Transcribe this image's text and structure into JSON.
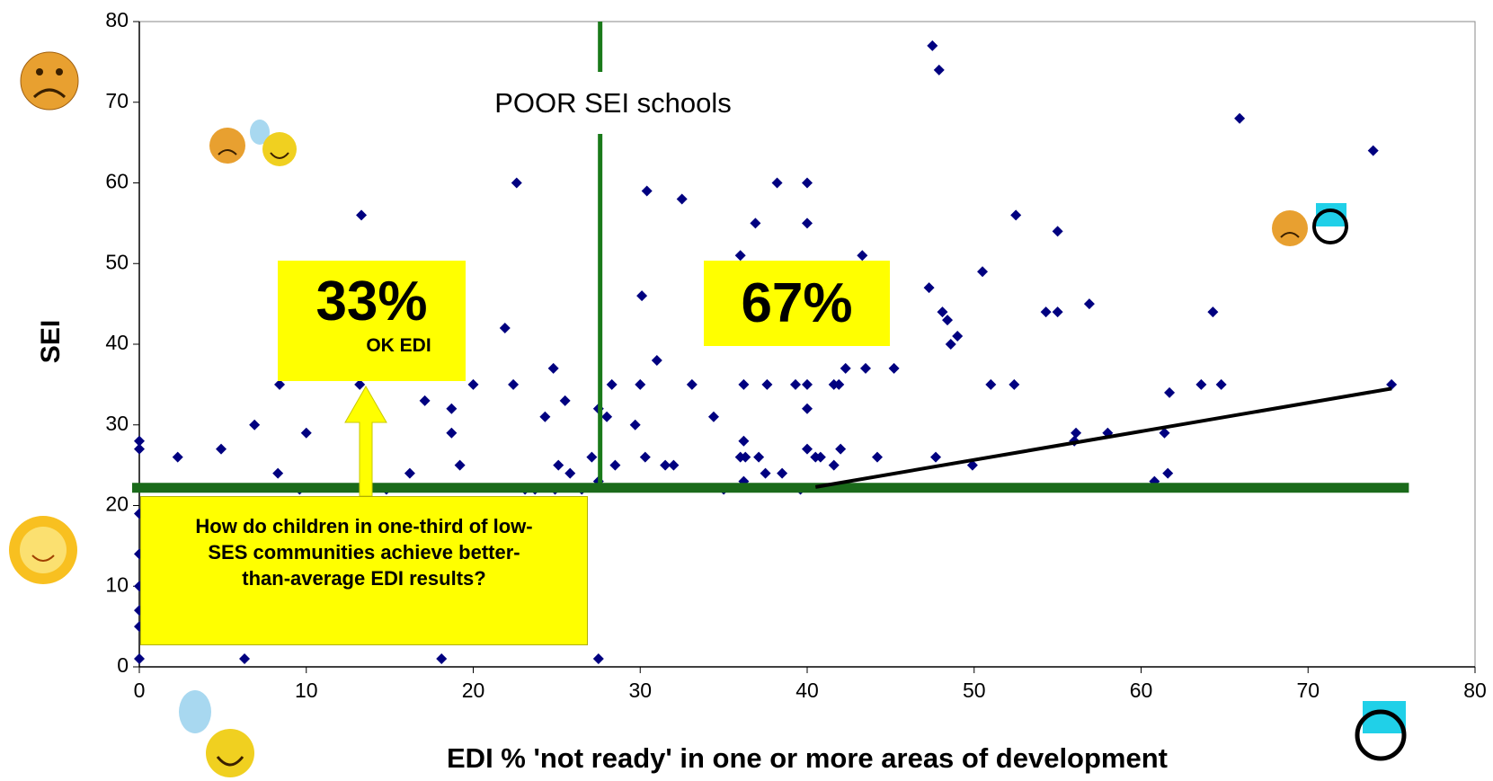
{
  "chart_data": {
    "type": "scatter",
    "x_label": "EDI % 'not ready' in one or more areas of development",
    "y_label": "SEI",
    "xlim": [
      0,
      80
    ],
    "xticks": [
      0,
      10,
      20,
      30,
      40,
      50,
      60,
      70,
      80
    ],
    "ylim": [
      0,
      80
    ],
    "yticks": [
      0,
      10,
      20,
      30,
      40,
      50,
      60,
      70,
      80
    ],
    "color": "#000080",
    "x": [
      0,
      0,
      0,
      0,
      0,
      0,
      0,
      0,
      2.3,
      4.9,
      6.9,
      6.3,
      8.3,
      8.4,
      9.6,
      10,
      13.3,
      13.2,
      14.8,
      16.2,
      17.1,
      18.1,
      18.7,
      18.7,
      19.2,
      20,
      21.9,
      22.4,
      22.6,
      23.1,
      23.7,
      24.3,
      24.8,
      24.9,
      25.1,
      25.5,
      25.8,
      26.5,
      27.1,
      27.5,
      27.5,
      27.5,
      28,
      28.3,
      28.5,
      29.7,
      30,
      30.1,
      30.3,
      30.4,
      31,
      31.5,
      32,
      32.5,
      33.1,
      34.4,
      35,
      36,
      36,
      36.2,
      36.2,
      36.2,
      36.3,
      36.9,
      37.1,
      37.6,
      37.5,
      38.2,
      38.5,
      39.3,
      39.6,
      40,
      40,
      40,
      40,
      40,
      40.5,
      40.8,
      41.6,
      41.6,
      41.9,
      42,
      42.3,
      43.3,
      43.5,
      44.2,
      45.2,
      47.3,
      47.5,
      47.7,
      47.9,
      48.1,
      48.4,
      48.6,
      49,
      49.9,
      50.5,
      51,
      52.5,
      52.4,
      55,
      54.3,
      55,
      56,
      56.1,
      56.9,
      58,
      60.8,
      61.4,
      61.6,
      61.7,
      63.6,
      64.3,
      64.8,
      65.9,
      73.9,
      75
    ],
    "y": [
      28,
      27,
      19,
      14,
      10,
      7,
      5,
      1,
      26,
      27,
      30,
      1,
      24,
      35,
      22,
      29,
      56,
      35,
      22,
      24,
      33,
      1,
      29,
      32,
      25,
      35,
      42,
      35,
      60,
      22,
      22,
      31,
      37,
      22,
      25,
      33,
      24,
      22,
      26,
      32,
      23,
      1,
      31,
      35,
      25,
      30,
      35,
      46,
      26,
      59,
      38,
      25,
      25,
      58,
      35,
      31,
      22,
      51,
      26,
      35,
      28,
      23,
      26,
      55,
      26,
      35,
      24,
      60,
      24,
      35,
      22,
      60,
      55,
      35,
      32,
      27,
      26,
      26,
      35,
      25,
      35,
      27,
      37,
      51,
      37,
      26,
      37,
      47,
      77,
      26,
      74,
      44,
      43,
      40,
      41,
      25,
      49,
      35,
      56,
      35,
      54,
      44,
      44,
      28,
      29,
      45,
      29,
      23,
      29,
      24,
      34,
      35,
      44,
      35,
      68,
      64,
      35
    ],
    "vline_x": 27.6,
    "vline_color": "#1a7a1a",
    "hline_y": 22.2,
    "hline_x": [
      0,
      75.5
    ],
    "hline_color": "#1a6a1a",
    "trend": {
      "x": [
        40.5,
        75
      ],
      "y": [
        22.3,
        34.5
      ],
      "color": "#000000"
    },
    "annotations": {
      "vline_label": "POOR SEI schools",
      "left_pct": "33%",
      "left_sub": "OK EDI",
      "right_pct": "67%",
      "question": "How do children in one-third of low-SES communities achieve better-than-average EDI results?"
    }
  }
}
